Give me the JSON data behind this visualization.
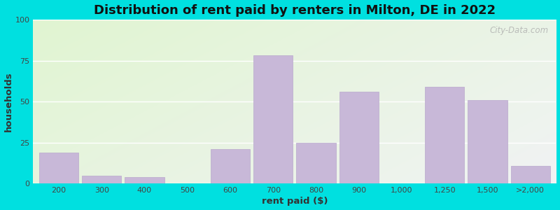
{
  "title": "Distribution of rent paid by renters in Milton, DE in 2022",
  "xlabel": "rent paid ($)",
  "ylabel": "households",
  "bar_labels": [
    "200",
    "300",
    "400",
    "500",
    "600",
    "700",
    "800",
    "900",
    "1,000",
    "1,250",
    "1,500",
    ">2,000"
  ],
  "bar_values": [
    19,
    5,
    4,
    0,
    21,
    78,
    25,
    56,
    0,
    59,
    51,
    11
  ],
  "bar_color": "#c8b8d8",
  "bar_edge_color": "#b8a8cc",
  "ylim": [
    0,
    100
  ],
  "yticks": [
    0,
    25,
    50,
    75,
    100
  ],
  "outer_bg": "#00e0e0",
  "title_fontsize": 13,
  "axis_label_fontsize": 9.5,
  "tick_fontsize": 8,
  "watermark_text": "City-Data.com",
  "grid_color": "#ffffff",
  "bg_colors": [
    "#e8f5e0",
    "#f0f0f8",
    "#e8f5e0",
    "#f8f8ff"
  ]
}
